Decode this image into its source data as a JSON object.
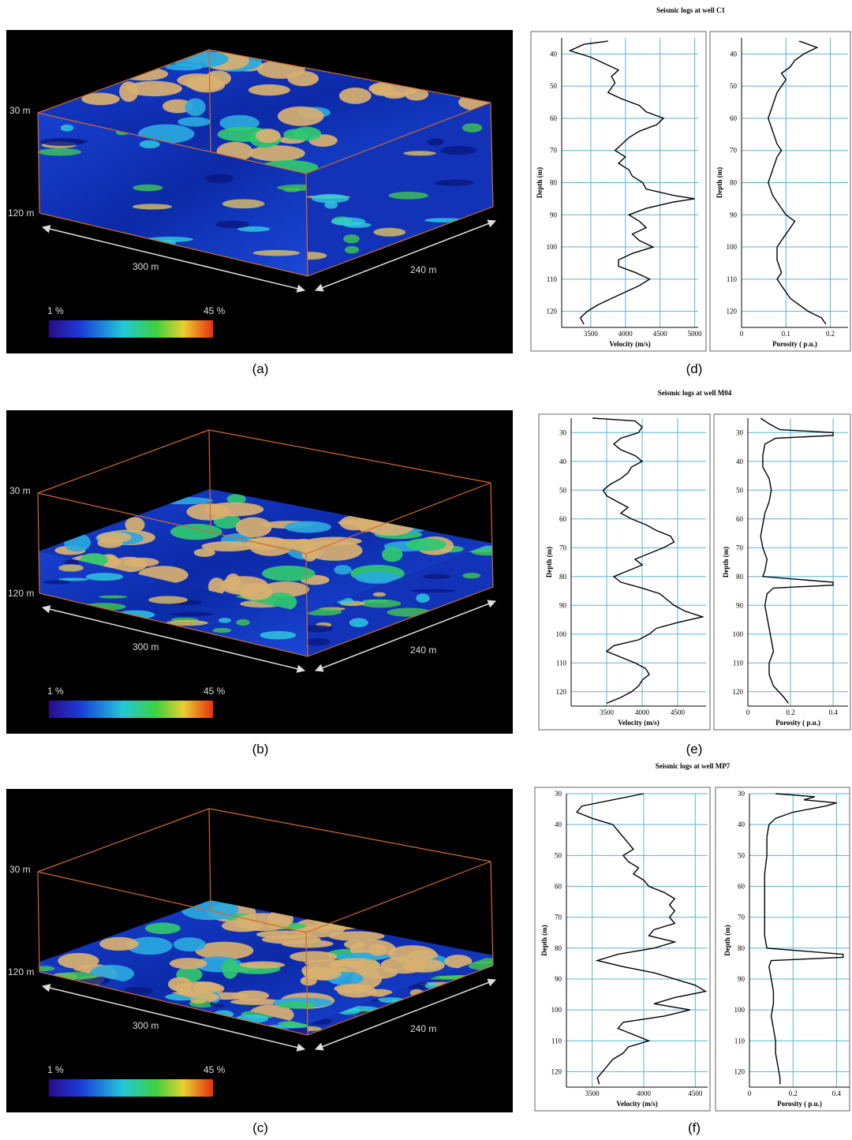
{
  "figure": {
    "panels": [
      {
        "label": "(a)",
        "top_depth": "30 m",
        "bottom_depth": "120 m",
        "length": "300 m",
        "width": "240 m",
        "scale_min": "1 %",
        "scale_max": "45 %"
      },
      {
        "label": "(b)",
        "top_depth": "30 m",
        "bottom_depth": "120 m",
        "length": "300 m",
        "width": "240 m",
        "scale_min": "1 %",
        "scale_max": "45 %"
      },
      {
        "label": "(c)",
        "top_depth": "30 m",
        "bottom_depth": "120 m",
        "length": "300 m",
        "width": "240 m",
        "scale_min": "1 %",
        "scale_max": "45 %"
      }
    ],
    "log_labels": [
      "(d)",
      "(e)",
      "(f)"
    ]
  },
  "chart_data": [
    {
      "type": "line",
      "title": "Seismic logs at well C1",
      "xlabel": "Velocity (m/s)",
      "ylabel": "Depth (m)",
      "depth": [
        36,
        37,
        39,
        41,
        43,
        45,
        47,
        49,
        52,
        54,
        56,
        58,
        60,
        62,
        64,
        66,
        68,
        70,
        72,
        74,
        76,
        78,
        80,
        82,
        84,
        85,
        86,
        88,
        90,
        92,
        94,
        96,
        98,
        100,
        102,
        104,
        106,
        108,
        110,
        112,
        114,
        116,
        118,
        120,
        122,
        124
      ],
      "series": [
        {
          "color": "#000000",
          "values": [
            3750,
            3400,
            3200,
            3500,
            3700,
            3900,
            3800,
            3850,
            3750,
            3950,
            4200,
            4300,
            4550,
            4450,
            4200,
            4050,
            3950,
            3850,
            4000,
            3900,
            4050,
            4100,
            4250,
            4300,
            4700,
            5000,
            4700,
            4300,
            4050,
            4200,
            4300,
            4100,
            4200,
            4400,
            4100,
            3900,
            3900,
            4150,
            4350,
            4200,
            4000,
            3800,
            3600,
            3450,
            3350,
            3400
          ]
        }
      ],
      "xlim": [
        3080,
        5050
      ],
      "ylim": [
        35,
        125
      ],
      "xticks": [
        3500,
        4000,
        4500,
        5000
      ],
      "yticks": [
        40,
        50,
        60,
        70,
        80,
        90,
        100,
        110,
        120
      ],
      "grid": true
    },
    {
      "type": "line",
      "xlabel": "Porosity ( p.u.)",
      "ylabel": "Depth (m)",
      "depth": [
        36,
        38,
        40,
        42,
        44,
        46,
        48,
        50,
        52,
        56,
        60,
        64,
        68,
        70,
        72,
        76,
        80,
        84,
        88,
        90,
        92,
        94,
        96,
        98,
        100,
        104,
        108,
        110,
        112,
        116,
        120,
        122,
        124
      ],
      "series": [
        {
          "color": "#000000",
          "values": [
            0.13,
            0.17,
            0.14,
            0.12,
            0.11,
            0.09,
            0.1,
            0.09,
            0.08,
            0.07,
            0.06,
            0.07,
            0.08,
            0.09,
            0.08,
            0.07,
            0.06,
            0.07,
            0.09,
            0.1,
            0.12,
            0.11,
            0.1,
            0.09,
            0.08,
            0.08,
            0.09,
            0.08,
            0.09,
            0.11,
            0.15,
            0.18,
            0.19
          ]
        }
      ],
      "xlim": [
        0,
        0.24
      ],
      "ylim": [
        35,
        125
      ],
      "xticks": [
        0,
        0.1,
        0.2
      ],
      "yticks": [
        40,
        50,
        60,
        70,
        80,
        90,
        100,
        110,
        120
      ],
      "grid": true
    },
    {
      "type": "line",
      "title": "Seismic logs at well M04",
      "xlabel": "Velocity (m/s)",
      "ylabel": "Depth (m)",
      "depth": [
        25,
        26,
        28,
        30,
        32,
        34,
        36,
        38,
        40,
        42,
        44,
        46,
        48,
        50,
        52,
        54,
        56,
        58,
        60,
        62,
        64,
        66,
        68,
        70,
        72,
        74,
        76,
        78,
        80,
        82,
        84,
        86,
        88,
        90,
        92,
        94,
        96,
        98,
        100,
        102,
        104,
        106,
        108,
        110,
        112,
        114,
        116,
        118,
        120,
        122,
        124
      ],
      "series": [
        {
          "color": "#000000",
          "values": [
            3300,
            3900,
            4000,
            3950,
            3700,
            3600,
            3700,
            3900,
            4000,
            3850,
            3800,
            3700,
            3550,
            3450,
            3500,
            3650,
            3800,
            3700,
            3850,
            4050,
            4200,
            4400,
            4450,
            4300,
            4100,
            3900,
            4000,
            3800,
            3600,
            3700,
            4000,
            4250,
            4350,
            4450,
            4600,
            4850,
            4500,
            4200,
            4100,
            3950,
            3600,
            3500,
            3700,
            3900,
            4050,
            4100,
            4000,
            3950,
            3850,
            3700,
            3500
          ]
        }
      ],
      "xlim": [
        3000,
        4900
      ],
      "ylim": [
        25,
        125
      ],
      "xticks": [
        3500,
        4000,
        4500
      ],
      "yticks": [
        30,
        40,
        50,
        60,
        70,
        80,
        90,
        100,
        110,
        120
      ],
      "grid": true
    },
    {
      "type": "line",
      "xlabel": "Porosity ( p.u.)",
      "ylabel": "Depth (m)",
      "depth": [
        25,
        27,
        29,
        30,
        31,
        32,
        34,
        38,
        42,
        46,
        50,
        54,
        58,
        62,
        66,
        70,
        74,
        78,
        80,
        82,
        83,
        84,
        86,
        90,
        94,
        98,
        102,
        106,
        110,
        114,
        118,
        122,
        124
      ],
      "series": [
        {
          "color": "#000000",
          "values": [
            0.06,
            0.1,
            0.15,
            0.4,
            0.4,
            0.13,
            0.08,
            0.07,
            0.07,
            0.1,
            0.11,
            0.1,
            0.08,
            0.07,
            0.06,
            0.07,
            0.09,
            0.08,
            0.07,
            0.4,
            0.4,
            0.12,
            0.09,
            0.08,
            0.09,
            0.1,
            0.11,
            0.12,
            0.1,
            0.1,
            0.12,
            0.17,
            0.19
          ]
        }
      ],
      "xlim": [
        0,
        0.47
      ],
      "ylim": [
        25,
        125
      ],
      "xticks": [
        0,
        0.2,
        0.4
      ],
      "yticks": [
        30,
        40,
        50,
        60,
        70,
        80,
        90,
        100,
        110,
        120
      ],
      "grid": true
    },
    {
      "type": "line",
      "title": "Seismic logs at well MP7",
      "xlabel": "Velocity (m/s)",
      "ylabel": "Depth (m)",
      "depth": [
        30,
        32,
        34,
        36,
        38,
        40,
        42,
        44,
        46,
        48,
        50,
        52,
        54,
        56,
        58,
        60,
        62,
        64,
        66,
        68,
        70,
        72,
        74,
        76,
        78,
        80,
        82,
        84,
        86,
        88,
        90,
        92,
        94,
        96,
        98,
        100,
        102,
        104,
        106,
        108,
        110,
        112,
        114,
        116,
        118,
        120,
        122,
        124
      ],
      "series": [
        {
          "color": "#000000",
          "values": [
            4000,
            3700,
            3400,
            3350,
            3500,
            3700,
            3750,
            3800,
            3850,
            3900,
            3800,
            3850,
            3950,
            3900,
            4000,
            4050,
            4200,
            4300,
            4250,
            4300,
            4250,
            4300,
            4100,
            4050,
            4300,
            4100,
            3750,
            3550,
            3800,
            4100,
            4300,
            4500,
            4600,
            4300,
            4100,
            4450,
            4200,
            3800,
            3750,
            3900,
            4050,
            3850,
            3800,
            3700,
            3650,
            3600,
            3550,
            3570
          ]
        }
      ],
      "xlim": [
        3250,
        4620
      ],
      "ylim": [
        30,
        125
      ],
      "xticks": [
        3500,
        4000,
        4500
      ],
      "yticks": [
        30,
        40,
        50,
        60,
        70,
        80,
        90,
        100,
        110,
        120
      ],
      "grid": true
    },
    {
      "type": "line",
      "xlabel": "Porosity ( p.u.)",
      "ylabel": "Depth (m)",
      "depth": [
        30,
        31,
        32,
        33,
        34,
        36,
        38,
        40,
        44,
        50,
        56,
        62,
        70,
        76,
        80,
        82,
        83,
        84,
        86,
        90,
        94,
        98,
        102,
        106,
        110,
        114,
        118,
        122,
        124
      ],
      "series": [
        {
          "color": "#000000",
          "values": [
            0.12,
            0.3,
            0.25,
            0.4,
            0.35,
            0.2,
            0.12,
            0.09,
            0.08,
            0.08,
            0.07,
            0.07,
            0.07,
            0.07,
            0.08,
            0.43,
            0.43,
            0.1,
            0.09,
            0.1,
            0.11,
            0.11,
            0.1,
            0.11,
            0.12,
            0.12,
            0.13,
            0.14,
            0.14
          ]
        }
      ],
      "xlim": [
        0,
        0.46
      ],
      "ylim": [
        30,
        125
      ],
      "xticks": [
        0,
        0.2,
        0.4
      ],
      "yticks": [
        30,
        40,
        50,
        60,
        70,
        80,
        90,
        100,
        110,
        120
      ],
      "grid": true
    }
  ]
}
